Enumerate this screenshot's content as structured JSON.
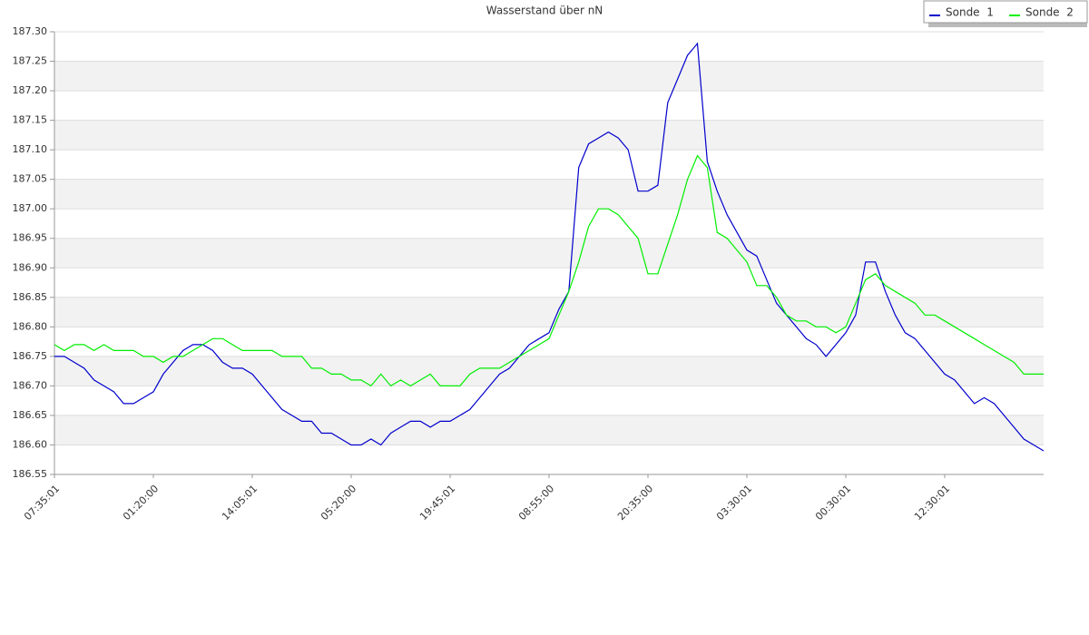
{
  "chart_data": {
    "type": "line",
    "title": "Wasserstand über nN",
    "categories": [
      "07:35:01",
      null,
      null,
      null,
      null,
      null,
      null,
      null,
      null,
      null,
      "01:20:00",
      null,
      null,
      null,
      null,
      null,
      null,
      null,
      null,
      null,
      "14:05:01",
      null,
      null,
      null,
      null,
      null,
      null,
      null,
      null,
      null,
      "05:20:00",
      null,
      null,
      null,
      null,
      null,
      null,
      null,
      null,
      null,
      "19:45:01",
      null,
      null,
      null,
      null,
      null,
      null,
      null,
      null,
      null,
      "08:55:00",
      null,
      null,
      null,
      null,
      null,
      null,
      null,
      null,
      null,
      "20:35:00",
      null,
      null,
      null,
      null,
      null,
      null,
      null,
      null,
      null,
      "03:30:01",
      null,
      null,
      null,
      null,
      null,
      null,
      null,
      null,
      null,
      "00:30:01",
      null,
      null,
      null,
      null,
      null,
      null,
      null,
      null,
      null,
      "12:30:01",
      null,
      null,
      null,
      null,
      null,
      null,
      null,
      null,
      null,
      null
    ],
    "series": [
      {
        "name": "Sonde  1",
        "color": "#0000cc",
        "values": [
          186.75,
          186.75,
          186.74,
          186.73,
          186.71,
          186.7,
          186.69,
          186.67,
          186.67,
          186.68,
          186.69,
          186.72,
          186.74,
          186.76,
          186.77,
          186.77,
          186.76,
          186.74,
          186.73,
          186.73,
          186.72,
          186.7,
          186.68,
          186.66,
          186.65,
          186.64,
          186.64,
          186.62,
          186.62,
          186.61,
          186.6,
          186.6,
          186.61,
          186.6,
          186.62,
          186.63,
          186.64,
          186.64,
          186.63,
          186.64,
          186.64,
          186.65,
          186.66,
          186.68,
          186.7,
          186.72,
          186.73,
          186.75,
          186.77,
          186.78,
          186.79,
          186.83,
          186.86,
          187.07,
          187.11,
          187.12,
          187.13,
          187.12,
          187.1,
          187.03,
          187.03,
          187.04,
          187.18,
          187.22,
          187.26,
          187.28,
          187.08,
          187.03,
          186.99,
          186.96,
          186.93,
          186.92,
          186.88,
          186.84,
          186.82,
          186.8,
          186.78,
          186.77,
          186.75,
          186.77,
          186.79,
          186.82,
          186.91,
          186.91,
          186.86,
          186.82,
          186.79,
          186.78,
          186.76,
          186.74,
          186.72,
          186.71,
          186.69,
          186.67,
          186.68,
          186.67,
          186.65,
          186.63,
          186.61,
          186.6,
          186.59
        ]
      },
      {
        "name": "Sonde  2",
        "color": "#00ee00",
        "values": [
          186.77,
          186.76,
          186.77,
          186.77,
          186.76,
          186.77,
          186.76,
          186.76,
          186.76,
          186.75,
          186.75,
          186.74,
          186.75,
          186.75,
          186.76,
          186.77,
          186.78,
          186.78,
          186.77,
          186.76,
          186.76,
          186.76,
          186.76,
          186.75,
          186.75,
          186.75,
          186.73,
          186.73,
          186.72,
          186.72,
          186.71,
          186.71,
          186.7,
          186.72,
          186.7,
          186.71,
          186.7,
          186.71,
          186.72,
          186.7,
          186.7,
          186.7,
          186.72,
          186.73,
          186.73,
          186.73,
          186.74,
          186.75,
          186.76,
          186.77,
          186.78,
          186.82,
          186.86,
          186.91,
          186.97,
          187.0,
          187.0,
          186.99,
          186.97,
          186.95,
          186.89,
          186.89,
          186.94,
          186.99,
          187.05,
          187.09,
          187.07,
          186.96,
          186.95,
          186.93,
          186.91,
          186.87,
          186.87,
          186.85,
          186.82,
          186.81,
          186.81,
          186.8,
          186.8,
          186.79,
          186.8,
          186.84,
          186.88,
          186.89,
          186.87,
          186.86,
          186.85,
          186.84,
          186.82,
          186.82,
          186.81,
          186.8,
          186.79,
          186.78,
          186.77,
          186.76,
          186.75,
          186.74,
          186.72,
          186.72,
          186.72
        ]
      }
    ],
    "ylim": [
      186.55,
      187.3
    ],
    "yticks": [
      186.55,
      {
        "value": 186.6,
        "label": "186.60"
      },
      186.65,
      {
        "value": 186.7,
        "label": "186.70"
      },
      186.75,
      {
        "value": 186.8,
        "label": "186.80"
      },
      186.85,
      {
        "value": 186.9,
        "label": "186.90"
      },
      186.95,
      {
        "value": 187.0,
        "label": "187.00"
      },
      187.05,
      {
        "value": 187.1,
        "label": "187.10"
      },
      187.15,
      {
        "value": 187.2,
        "label": "187.20"
      },
      187.25,
      {
        "value": 187.3,
        "label": "187.30"
      }
    ],
    "grid": true,
    "banded_grid": true,
    "legend": "top-right"
  }
}
